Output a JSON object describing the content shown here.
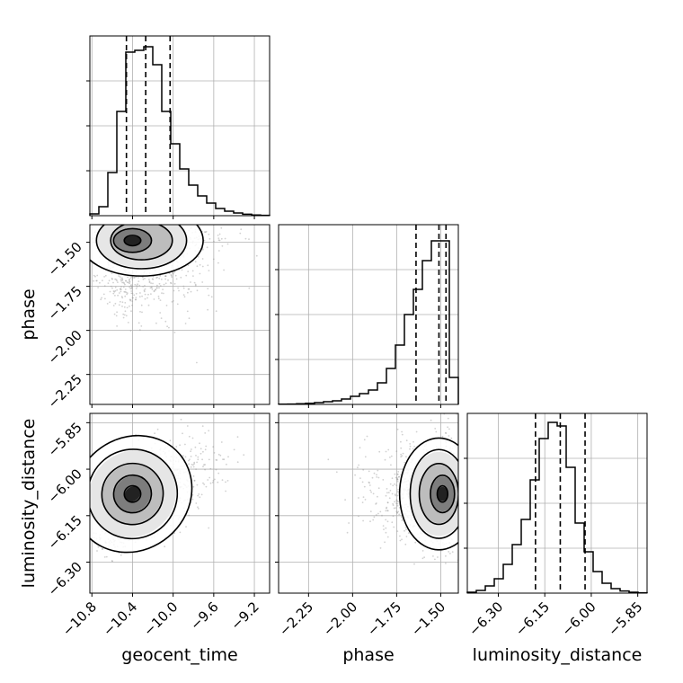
{
  "chart_data": {
    "type": "corner",
    "parameters": [
      "geocent_time",
      "phase",
      "luminosity_distance"
    ],
    "axis_labels": {
      "x": [
        "geocent_time",
        "phase",
        "luminosity_distance"
      ],
      "y": [
        "phase",
        "luminosity_distance"
      ]
    },
    "ranges": {
      "geocent_time": [
        -10.82,
        -9.05
      ],
      "phase": [
        -2.42,
        -1.4
      ],
      "luminosity_distance": [
        -6.4,
        -5.82
      ]
    },
    "ticks": {
      "geocent_time": [
        -10.8,
        -10.4,
        -10.0,
        -9.6,
        -9.2
      ],
      "phase": [
        -2.25,
        -2.0,
        -1.75,
        -1.5
      ],
      "luminosity_distance": [
        -6.3,
        -6.15,
        -6.0,
        -5.85
      ]
    },
    "tick_labels": {
      "geocent_time": [
        "−10.8",
        "−10.4",
        "−10.0",
        "−9.6",
        "−9.2"
      ],
      "phase": [
        "−2.25",
        "−2.00",
        "−1.75",
        "−1.50"
      ],
      "luminosity_distance": [
        "−6.30",
        "−6.15",
        "−6.00",
        "−5.85"
      ]
    },
    "quantiles": {
      "geocent_time": [
        -10.46,
        -10.27,
        -10.03
      ],
      "phase": [
        -1.64,
        -1.51,
        -1.47
      ],
      "luminosity_distance": [
        -6.18,
        -6.1,
        -6.02
      ]
    },
    "histograms": {
      "geocent_time": [
        0.01,
        0.05,
        0.24,
        0.58,
        0.91,
        0.92,
        0.94,
        0.84,
        0.58,
        0.4,
        0.26,
        0.17,
        0.11,
        0.07,
        0.04,
        0.025,
        0.015,
        0.008,
        0.004,
        0.002
      ],
      "phase": [
        0.001,
        0.002,
        0.004,
        0.006,
        0.01,
        0.015,
        0.02,
        0.03,
        0.045,
        0.06,
        0.08,
        0.12,
        0.2,
        0.33,
        0.5,
        0.64,
        0.8,
        0.91,
        0.91,
        0.15
      ],
      "luminosity_distance": [
        0.005,
        0.015,
        0.04,
        0.08,
        0.16,
        0.27,
        0.41,
        0.63,
        0.86,
        0.95,
        0.93,
        0.7,
        0.39,
        0.23,
        0.12,
        0.055,
        0.025,
        0.012,
        0.005,
        0.002
      ]
    },
    "grid": true,
    "density_center": {
      "geocent_time": -10.4,
      "phase": -1.49,
      "luminosity_distance": -6.08
    }
  }
}
